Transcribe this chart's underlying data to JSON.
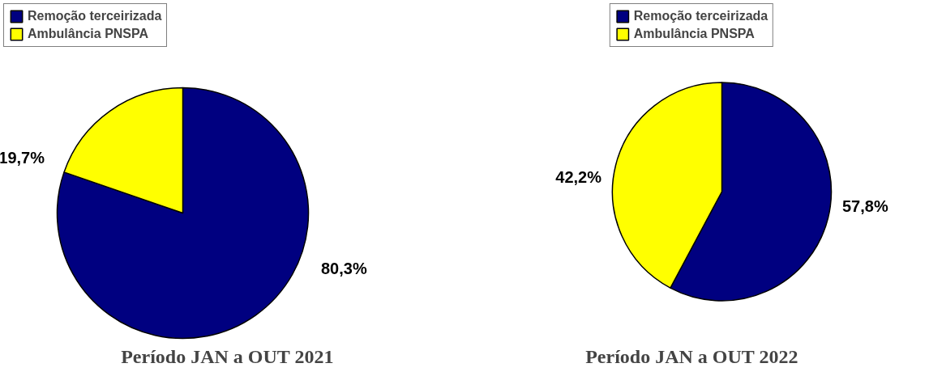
{
  "chart_data": [
    {
      "type": "pie",
      "title": "Período JAN a OUT 2021",
      "categories": [
        "Remoção terceirizada",
        "Ambulância PNSPA"
      ],
      "values": [
        80.3,
        19.7
      ],
      "colors": [
        "#000080",
        "#ffff00"
      ],
      "value_labels": [
        "80,3%",
        "19,7%"
      ],
      "legend": "top left"
    },
    {
      "type": "pie",
      "title": "Período JAN a OUT 2022",
      "categories": [
        "Remoção terceirizada",
        "Ambulância PNSPA"
      ],
      "values": [
        57.8,
        42.2
      ],
      "colors": [
        "#000080",
        "#ffff00"
      ],
      "value_labels": [
        "57,8%",
        "42,2%"
      ],
      "legend": "top"
    }
  ]
}
